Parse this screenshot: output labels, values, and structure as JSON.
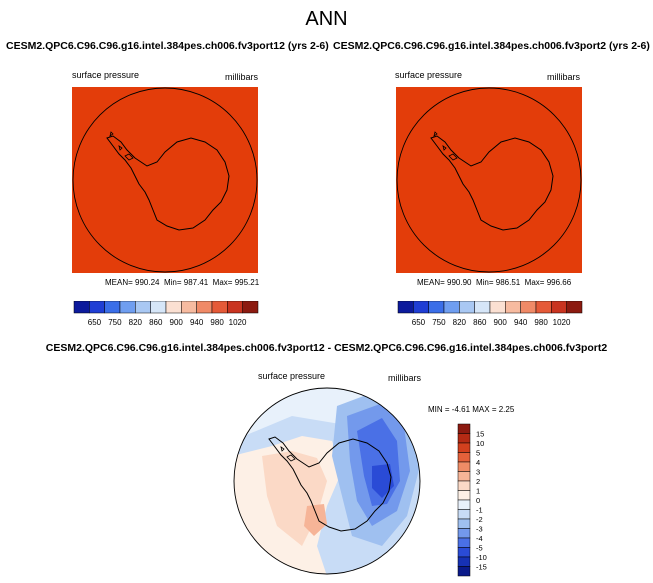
{
  "main_title": "ANN",
  "panels": [
    {
      "case": "CESM2.QPC6.C96.C96.g16.intel.384pes.ch006.fv3port12 (yrs 2-6)",
      "variable": "surface pressure",
      "units": "millibars",
      "mean_label": "MEAN=",
      "mean": "990.24",
      "min_label": "Min=",
      "min": "987.41",
      "max_label": "Max=",
      "max": "995.21",
      "fill_color": "#e33d0a"
    },
    {
      "case": "CESM2.QPC6.C96.C96.g16.intel.384pes.ch006.fv3port2 (yrs 2-6)",
      "variable": "surface pressure",
      "units": "millibars",
      "mean_label": "MEAN=",
      "mean": "990.90",
      "min_label": "Min=",
      "min": "986.51",
      "max_label": "Max=",
      "max": "996.66",
      "fill_color": "#e33d0a"
    }
  ],
  "abs_colorbar": {
    "labels": [
      "650",
      "750",
      "820",
      "860",
      "900",
      "940",
      "980",
      "1020"
    ],
    "colors": [
      "#0c1a9c",
      "#1f3ed4",
      "#3a6ee8",
      "#6f9ef0",
      "#a9c8f3",
      "#d6e6f8",
      "#fbe0d2",
      "#f7bba0",
      "#f08a67",
      "#e55a38",
      "#c93420",
      "#8c1a10"
    ]
  },
  "diff": {
    "title": "CESM2.QPC6.C96.C96.g16.intel.384pes.ch006.fv3port12 - CESM2.QPC6.C96.C96.g16.intel.384pes.ch006.fv3port2",
    "variable": "surface pressure",
    "units": "millibars",
    "min_label": "MIN =",
    "min": "-4.61",
    "max_label": "MAX =",
    "max": "2.25",
    "colorbar_labels": [
      "15",
      "10",
      "5",
      "4",
      "3",
      "2",
      "1",
      "0",
      "-1",
      "-2",
      "-3",
      "-4",
      "-5",
      "-10",
      "-15"
    ],
    "colorbar_colors": [
      "#8c1a10",
      "#b42a14",
      "#d2401e",
      "#e4613a",
      "#ef8c66",
      "#f6b497",
      "#fbd9c6",
      "#fdf0e6",
      "#e8f1fb",
      "#c8dcf6",
      "#9fc0f0",
      "#7399ec",
      "#4a70e6",
      "#2a4bd6",
      "#1631b4",
      "#0a1a8a"
    ]
  }
}
